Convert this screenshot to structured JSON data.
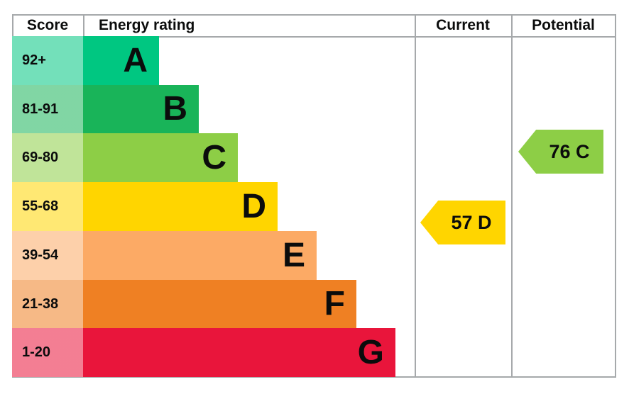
{
  "header": {
    "score": "Score",
    "energy_rating": "Energy rating",
    "current": "Current",
    "potential": "Potential"
  },
  "chart_data": {
    "type": "bar",
    "title": "Energy efficiency rating chart (EPC)",
    "bands": [
      {
        "letter": "A",
        "score_range": "92+",
        "min": 92,
        "max": 100,
        "color": "#00c781"
      },
      {
        "letter": "B",
        "score_range": "81-91",
        "min": 81,
        "max": 91,
        "color": "#19b459"
      },
      {
        "letter": "C",
        "score_range": "69-80",
        "min": 69,
        "max": 80,
        "color": "#8dce46"
      },
      {
        "letter": "D",
        "score_range": "55-68",
        "min": 55,
        "max": 68,
        "color": "#ffd500"
      },
      {
        "letter": "E",
        "score_range": "39-54",
        "min": 39,
        "max": 54,
        "color": "#fcaa65"
      },
      {
        "letter": "F",
        "score_range": "21-38",
        "min": 21,
        "max": 38,
        "color": "#ef8023"
      },
      {
        "letter": "G",
        "score_range": "1-20",
        "min": 1,
        "max": 20,
        "color": "#e9153b"
      }
    ],
    "current": {
      "label": "57 D",
      "score": 57,
      "band": "D",
      "color": "#ffd500"
    },
    "potential": {
      "label": "76 C",
      "score": 76,
      "band": "C",
      "color": "#8dce46"
    },
    "grid_color": "#a6a9ab",
    "text_color": "#0b0c0c",
    "legend_position": "columns-right"
  }
}
